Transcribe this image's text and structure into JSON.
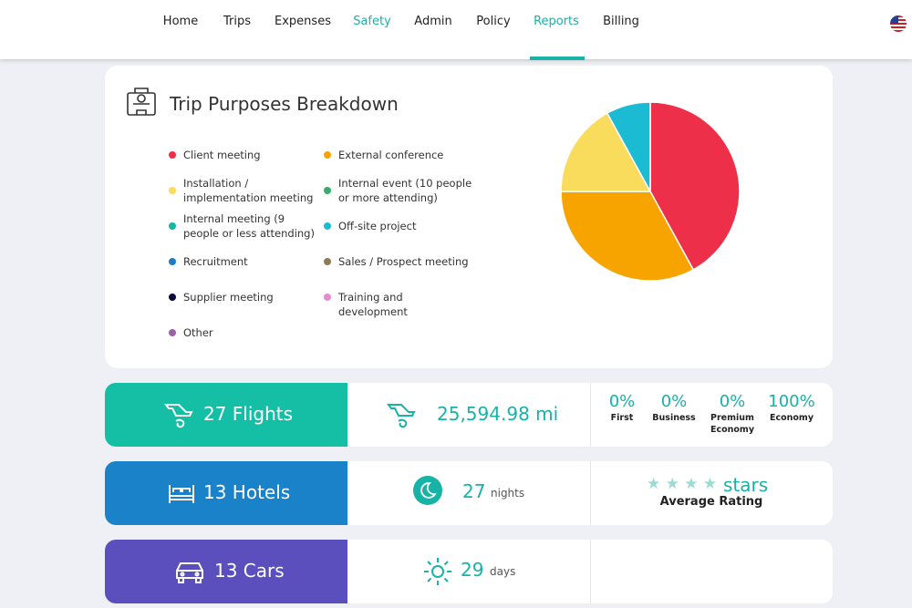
{
  "nav": {
    "items": [
      "Home",
      "Trips",
      "Expenses",
      "Safety",
      "Admin",
      "Policy",
      "Reports",
      "Billing"
    ]
  },
  "chart_data": {
    "type": "pie",
    "title": "Trip Purposes Breakdown",
    "categories": [
      "Client meeting",
      "External conference",
      "Installation / implementation meeting",
      "Internal event (10 people or more attending)",
      "Internal meeting (9 people or less attending)",
      "Off-site project",
      "Recruitment",
      "Sales / Prospect meeting",
      "Supplier meeting",
      "Training and development",
      "Other"
    ],
    "values": [
      42,
      33,
      17,
      0,
      0,
      8,
      0,
      0,
      0,
      0,
      0
    ],
    "colors": [
      "#ee2f4a",
      "#f7a400",
      "#f9dc5c",
      "#3aaa6e",
      "#14b8a0",
      "#1bbcd3",
      "#1f7bc4",
      "#8e7a55",
      "#0b0b3b",
      "#e58cd1",
      "#9b5fa8"
    ]
  },
  "flights": {
    "label": "27 Flights",
    "distance": "25,594.98 mi",
    "classes": [
      {
        "share": "0%",
        "name": "First"
      },
      {
        "share": "0%",
        "name": "Business"
      },
      {
        "share": "0%",
        "name": "Premium Economy"
      },
      {
        "share": "100%",
        "name": "Economy"
      }
    ]
  },
  "hotels": {
    "label": "13 Hotels",
    "nights": "27",
    "nights_unit": "nights",
    "stars": "★ ★ ★ ★",
    "rating_unit": "stars",
    "rating_label": "Average Rating"
  },
  "cars": {
    "label": "13 Cars",
    "days": "29",
    "days_unit": "days"
  }
}
